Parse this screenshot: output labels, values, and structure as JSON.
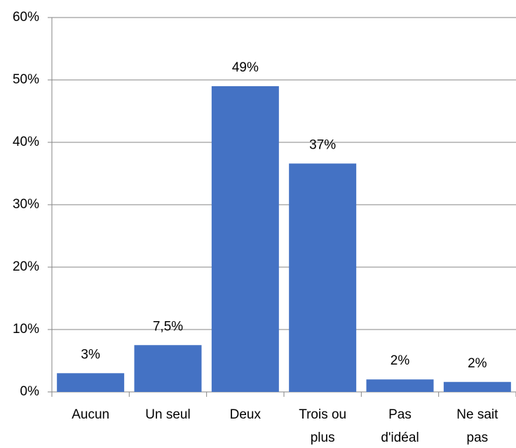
{
  "chart_data": {
    "type": "bar",
    "categories": [
      "Aucun",
      "Un seul",
      "Deux",
      "Trois ou plus",
      "Pas d'idéal",
      "Ne sait pas"
    ],
    "values": [
      3,
      7.5,
      49,
      36.6,
      2,
      1.6
    ],
    "value_labels": [
      "3%",
      "7,5%",
      "49%",
      "37%",
      "2%",
      "2%"
    ],
    "color": "#4472c4",
    "ylim": [
      0,
      60
    ],
    "yticks": [
      {
        "value": 0,
        "label": "0%"
      },
      {
        "value": 10,
        "label": "10%"
      },
      {
        "value": 20,
        "label": "20%"
      },
      {
        "value": 30,
        "label": "30%"
      },
      {
        "value": 40,
        "label": "40%"
      },
      {
        "value": 50,
        "label": "50%"
      },
      {
        "value": 60,
        "label": "60%"
      }
    ],
    "grid": true
  }
}
